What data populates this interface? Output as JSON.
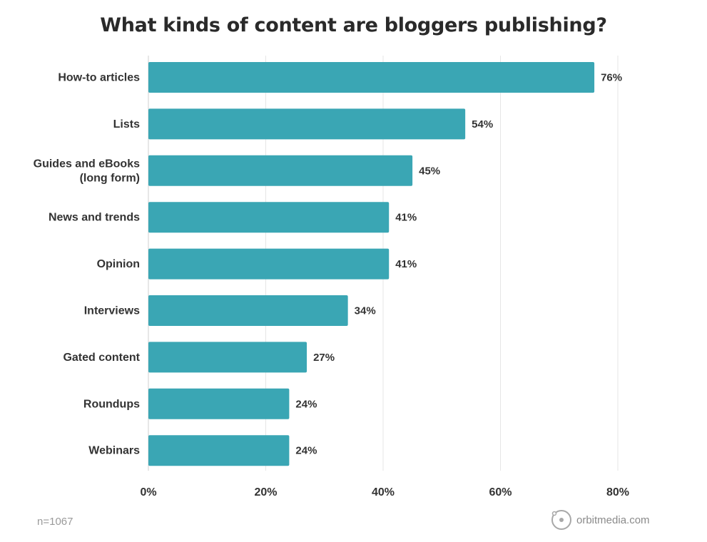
{
  "chart_data": {
    "type": "bar",
    "orientation": "horizontal",
    "title": "What kinds of content are bloggers publishing?",
    "categories": [
      "How-to articles",
      "Lists",
      "Guides and eBooks\n(long form)",
      "News and trends",
      "Opinion",
      "Interviews",
      "Gated content",
      "Roundups",
      "Webinars"
    ],
    "values": [
      76,
      54,
      45,
      41,
      41,
      34,
      27,
      24,
      24
    ],
    "value_labels": [
      "76%",
      "54%",
      "45%",
      "41%",
      "41%",
      "34%",
      "27%",
      "24%",
      "24%"
    ],
    "xticks": [
      0,
      20,
      40,
      60,
      80
    ],
    "xtick_labels": [
      "0%",
      "20%",
      "40%",
      "60%",
      "80%"
    ],
    "xlim": [
      0,
      80
    ],
    "grid": "vertical",
    "bar_color": "#3aa6b4",
    "xlabel": "",
    "ylabel": ""
  },
  "footnote": "n=1067",
  "brand": {
    "text": "orbitmedia.com",
    "icon": "orbit-logo-icon"
  }
}
